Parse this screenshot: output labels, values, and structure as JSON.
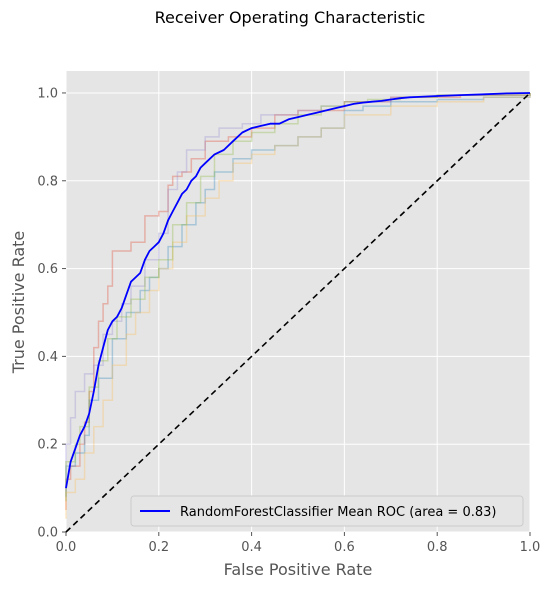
{
  "chart_data": {
    "type": "line",
    "title": "Receiver Operating Characteristic",
    "xlabel": "False Positive Rate",
    "ylabel": "True Positive Rate",
    "xlim": [
      0.0,
      1.0
    ],
    "ylim": [
      0.0,
      1.05
    ],
    "xticks": [
      "0.0",
      "0.2",
      "0.4",
      "0.6",
      "0.8",
      "1.0"
    ],
    "yticks": [
      "0.0",
      "0.2",
      "0.4",
      "0.6",
      "0.8",
      "1.0"
    ],
    "grid": true,
    "legend_position": "lower-right",
    "colors": {
      "background": "#e5e5e5",
      "grid": "#ffffff",
      "mean": "#0000ff",
      "diagonal": "#000000",
      "folds": [
        "#e24a33",
        "#348abd",
        "#988ed5",
        "#fbc15e",
        "#8eba42"
      ]
    },
    "series": [
      {
        "name": "RandomForestClassifier Mean ROC (area = 0.83)",
        "style": "mean",
        "x": [
          0.0,
          0.01,
          0.02,
          0.03,
          0.04,
          0.05,
          0.06,
          0.07,
          0.08,
          0.09,
          0.1,
          0.11,
          0.12,
          0.13,
          0.14,
          0.15,
          0.16,
          0.17,
          0.18,
          0.19,
          0.2,
          0.21,
          0.22,
          0.23,
          0.24,
          0.25,
          0.26,
          0.27,
          0.28,
          0.29,
          0.3,
          0.32,
          0.34,
          0.36,
          0.38,
          0.4,
          0.42,
          0.44,
          0.46,
          0.48,
          0.5,
          0.52,
          0.54,
          0.56,
          0.58,
          0.6,
          0.62,
          0.64,
          0.66,
          0.68,
          0.7,
          0.72,
          0.74,
          0.76,
          0.8,
          0.85,
          0.9,
          0.95,
          1.0
        ],
        "y": [
          0.1,
          0.16,
          0.19,
          0.22,
          0.24,
          0.27,
          0.32,
          0.38,
          0.42,
          0.46,
          0.48,
          0.49,
          0.51,
          0.54,
          0.57,
          0.58,
          0.59,
          0.62,
          0.64,
          0.65,
          0.66,
          0.68,
          0.71,
          0.73,
          0.75,
          0.77,
          0.78,
          0.8,
          0.81,
          0.83,
          0.84,
          0.86,
          0.87,
          0.89,
          0.91,
          0.92,
          0.925,
          0.93,
          0.93,
          0.94,
          0.945,
          0.95,
          0.955,
          0.96,
          0.965,
          0.97,
          0.975,
          0.978,
          0.98,
          0.982,
          0.985,
          0.988,
          0.99,
          0.991,
          0.993,
          0.995,
          0.997,
          0.999,
          1.0
        ]
      },
      {
        "style": "chance",
        "x": [
          0.0,
          1.0
        ],
        "y": [
          0.0,
          1.0
        ]
      },
      {
        "style": "fold",
        "x": [
          0.0,
          0.0,
          0.01,
          0.03,
          0.04,
          0.05,
          0.06,
          0.07,
          0.08,
          0.09,
          0.1,
          0.11,
          0.14,
          0.16,
          0.17,
          0.2,
          0.22,
          0.23,
          0.25,
          0.27,
          0.3,
          0.35,
          0.4,
          0.45,
          0.5,
          0.6,
          0.7,
          0.85,
          1.0
        ],
        "y": [
          0.05,
          0.12,
          0.15,
          0.2,
          0.25,
          0.32,
          0.42,
          0.48,
          0.52,
          0.56,
          0.64,
          0.64,
          0.66,
          0.66,
          0.72,
          0.73,
          0.79,
          0.81,
          0.82,
          0.85,
          0.89,
          0.9,
          0.92,
          0.95,
          0.96,
          0.98,
          0.99,
          0.995,
          1.0
        ]
      },
      {
        "style": "fold",
        "x": [
          0.0,
          0.0,
          0.02,
          0.04,
          0.05,
          0.07,
          0.1,
          0.13,
          0.16,
          0.18,
          0.2,
          0.22,
          0.25,
          0.28,
          0.3,
          0.32,
          0.36,
          0.4,
          0.45,
          0.5,
          0.55,
          0.6,
          0.64,
          0.7,
          0.8,
          0.9,
          1.0
        ],
        "y": [
          0.08,
          0.15,
          0.18,
          0.22,
          0.3,
          0.35,
          0.44,
          0.5,
          0.55,
          0.58,
          0.6,
          0.65,
          0.7,
          0.75,
          0.78,
          0.82,
          0.85,
          0.87,
          0.88,
          0.9,
          0.92,
          0.96,
          0.97,
          0.98,
          0.985,
          0.99,
          1.0
        ]
      },
      {
        "style": "fold",
        "x": [
          0.0,
          0.0,
          0.01,
          0.02,
          0.04,
          0.06,
          0.08,
          0.1,
          0.12,
          0.14,
          0.17,
          0.2,
          0.22,
          0.24,
          0.26,
          0.3,
          0.33,
          0.38,
          0.42,
          0.5,
          0.55,
          0.6,
          0.7,
          0.8,
          1.0
        ],
        "y": [
          0.1,
          0.2,
          0.26,
          0.32,
          0.36,
          0.38,
          0.45,
          0.48,
          0.52,
          0.56,
          0.62,
          0.68,
          0.78,
          0.82,
          0.87,
          0.9,
          0.92,
          0.93,
          0.95,
          0.96,
          0.97,
          0.98,
          0.99,
          0.995,
          1.0
        ]
      },
      {
        "style": "fold",
        "x": [
          0.0,
          0.0,
          0.02,
          0.04,
          0.06,
          0.08,
          0.1,
          0.13,
          0.15,
          0.18,
          0.2,
          0.23,
          0.26,
          0.3,
          0.33,
          0.36,
          0.4,
          0.45,
          0.5,
          0.55,
          0.6,
          0.7,
          0.8,
          0.9,
          1.0
        ],
        "y": [
          0.03,
          0.09,
          0.12,
          0.18,
          0.24,
          0.3,
          0.38,
          0.45,
          0.5,
          0.55,
          0.6,
          0.66,
          0.72,
          0.76,
          0.8,
          0.84,
          0.86,
          0.88,
          0.9,
          0.92,
          0.95,
          0.97,
          0.98,
          0.99,
          1.0
        ]
      },
      {
        "style": "fold",
        "x": [
          0.0,
          0.0,
          0.02,
          0.03,
          0.05,
          0.07,
          0.09,
          0.11,
          0.14,
          0.17,
          0.2,
          0.23,
          0.26,
          0.29,
          0.32,
          0.36,
          0.4,
          0.45,
          0.5,
          0.55,
          0.6,
          0.65,
          0.72,
          0.8,
          1.0
        ],
        "y": [
          0.07,
          0.16,
          0.2,
          0.24,
          0.33,
          0.39,
          0.44,
          0.49,
          0.53,
          0.58,
          0.62,
          0.7,
          0.75,
          0.81,
          0.86,
          0.89,
          0.91,
          0.93,
          0.95,
          0.97,
          0.98,
          0.985,
          0.99,
          0.995,
          1.0
        ]
      }
    ]
  }
}
